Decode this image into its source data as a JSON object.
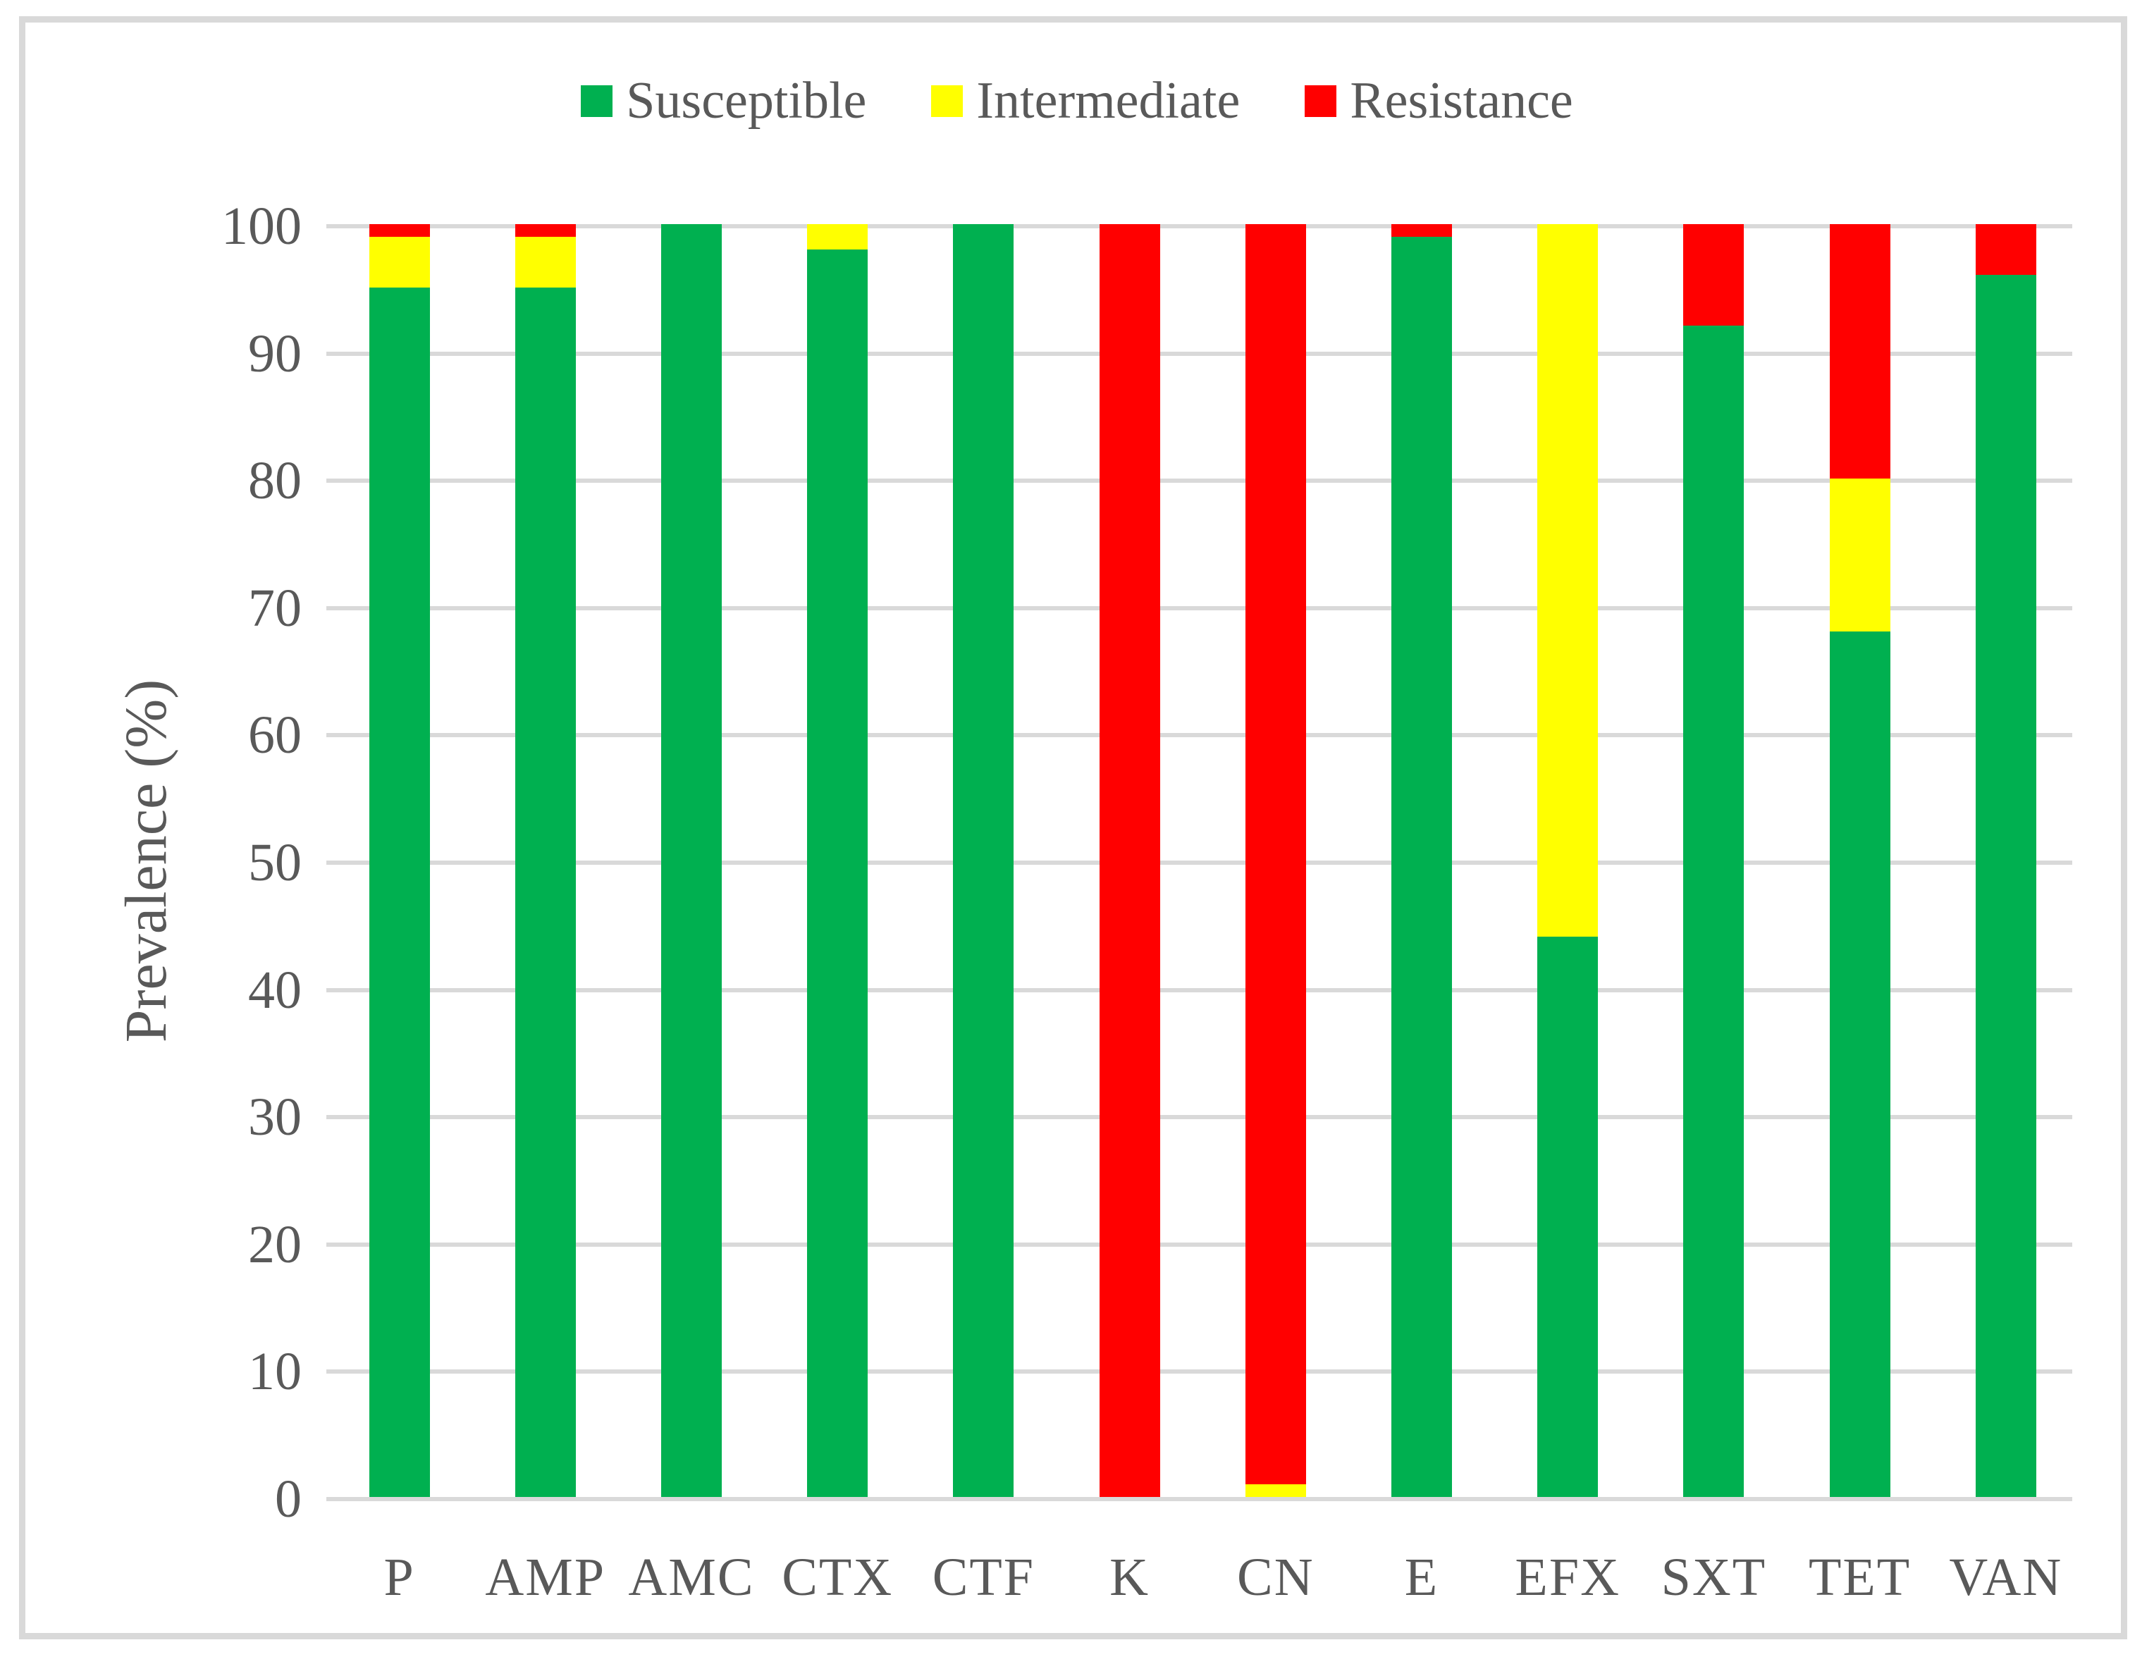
{
  "chart_data": {
    "type": "bar",
    "stacked": true,
    "title": "",
    "categories": [
      "P",
      "AMP",
      "AMC",
      "CTX",
      "CTF",
      "K",
      "CN",
      "E",
      "EFX",
      "SXT",
      "TET",
      "VAN"
    ],
    "series": [
      {
        "name": "Susceptible",
        "color": "#00B050",
        "values": [
          95,
          95,
          100,
          98,
          100,
          0,
          0,
          99,
          44,
          92,
          68,
          96
        ]
      },
      {
        "name": "Intermediate",
        "color": "#FFFF00",
        "values": [
          4,
          4,
          0,
          2,
          0,
          0,
          1,
          0,
          56,
          0,
          12,
          0
        ]
      },
      {
        "name": "Resistance",
        "color": "#FF0000",
        "values": [
          1,
          1,
          0,
          0,
          0,
          100,
          99,
          1,
          0,
          8,
          20,
          4
        ]
      }
    ],
    "xlabel": "",
    "ylabel": "Prevalence (%)",
    "ylim": [
      0,
      100
    ],
    "yticks": [
      0,
      10,
      20,
      30,
      40,
      50,
      60,
      70,
      80,
      90,
      100
    ],
    "grid": true,
    "legend_position": "top",
    "gridline_color": "#D9D9D9",
    "text_color": "#595959",
    "border_color": "#D9D9D9",
    "background_color": "#FFFFFF"
  }
}
